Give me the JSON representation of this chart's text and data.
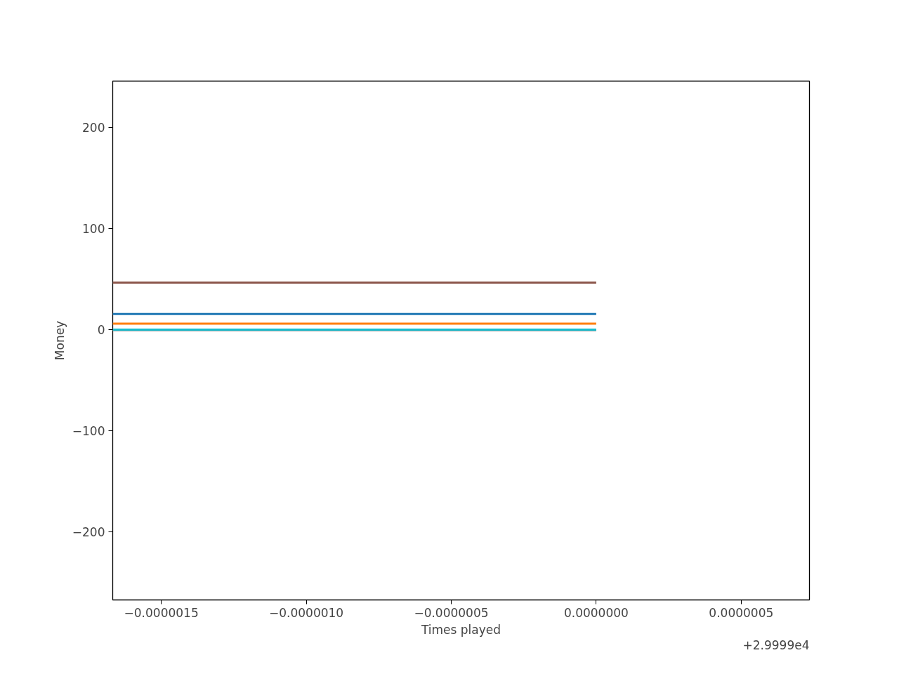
{
  "chart_data": {
    "type": "line",
    "xlabel": "Times played",
    "ylabel": "Money",
    "x": [
      -1.6675e-06,
      0
    ],
    "series": [
      {
        "color": "#8c564b",
        "values": [
          46.5,
          46.5
        ]
      },
      {
        "color": "#1f77b4",
        "values": [
          15.5,
          15.5
        ]
      },
      {
        "color": "#ff7f0e",
        "values": [
          5.8,
          5.8
        ]
      },
      {
        "color": "#7f7f7f",
        "values": [
          -0.5,
          -0.5
        ]
      },
      {
        "color": "#17becf",
        "values": [
          0,
          0
        ]
      }
    ],
    "xlim": [
      -1.6675e-06,
      7.354e-07
    ],
    "xticks": [
      {
        "value": -1.5e-06,
        "label": "−0.0000015"
      },
      {
        "value": -1e-06,
        "label": "−0.0000010"
      },
      {
        "value": -5e-07,
        "label": "−0.0000005"
      },
      {
        "value": 0,
        "label": "0.0000000"
      },
      {
        "value": 5e-07,
        "label": "0.0000005"
      }
    ],
    "ylim": [
      -267.4,
      245.8
    ],
    "yticks": [
      {
        "value": -200,
        "label": "−200"
      },
      {
        "value": -100,
        "label": "−100"
      },
      0,
      100,
      200
    ],
    "annotations": [
      "+2.9999e4"
    ],
    "grid": false
  }
}
